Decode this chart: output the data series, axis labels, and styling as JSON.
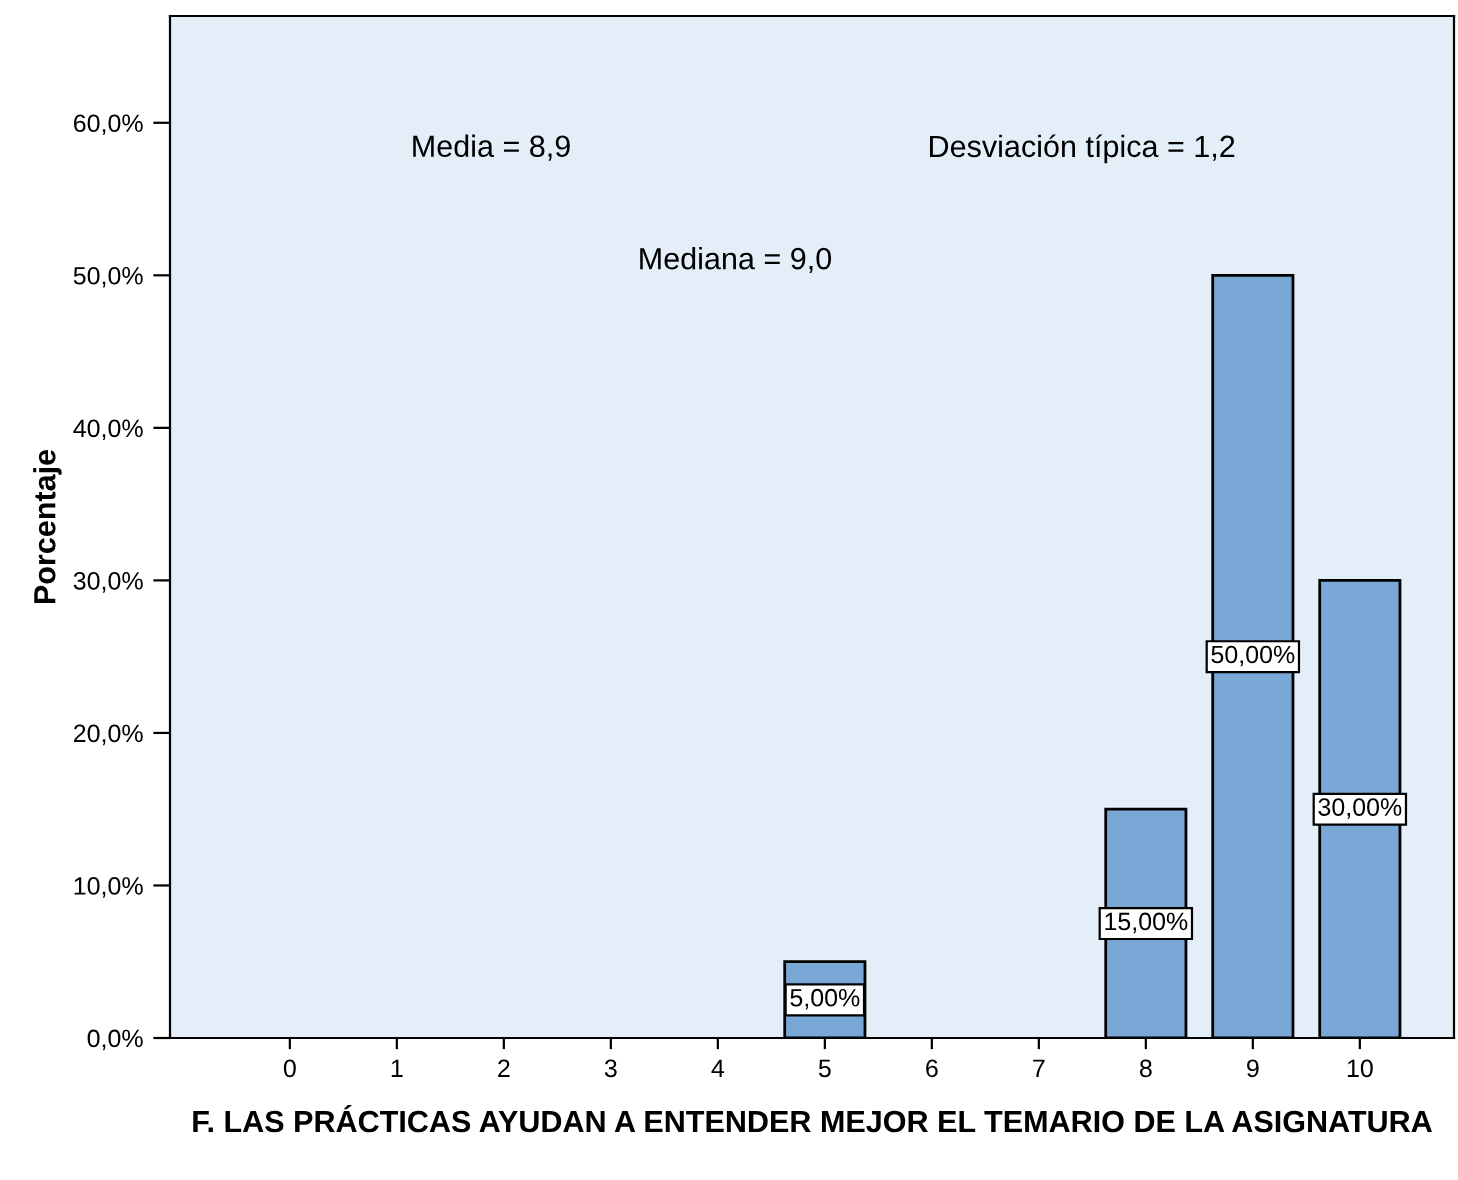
{
  "chart_data": {
    "type": "bar",
    "xlabel": "F. LAS PRÁCTICAS AYUDAN A ENTENDER MEJOR EL TEMARIO DE LA ASIGNATURA",
    "ylabel": "Porcentaje",
    "categories": [
      "0",
      "1",
      "2",
      "3",
      "4",
      "5",
      "6",
      "7",
      "8",
      "9",
      "10"
    ],
    "values": [
      0,
      0,
      0,
      0,
      0,
      5,
      0,
      0,
      15,
      50,
      30
    ],
    "value_labels": [
      null,
      null,
      null,
      null,
      null,
      "5,00%",
      null,
      null,
      "15,00%",
      "50,00%",
      "30,00%"
    ],
    "color": "#79a8d6",
    "ylim": [
      0,
      67
    ],
    "yticks": [
      {
        "value": 0,
        "label": "0,0%"
      },
      {
        "value": 10,
        "label": "10,0%"
      },
      {
        "value": 20,
        "label": "20,0%"
      },
      {
        "value": 30,
        "label": "30,0%"
      },
      {
        "value": 40,
        "label": "40,0%"
      },
      {
        "value": 50,
        "label": "50,0%"
      },
      {
        "value": 60,
        "label": "60,0%"
      }
    ],
    "annotations": [
      "Media = 8,9",
      "Desviación típica = 1,2",
      "Mediana = 9,0"
    ],
    "grid": false,
    "legend": false
  }
}
